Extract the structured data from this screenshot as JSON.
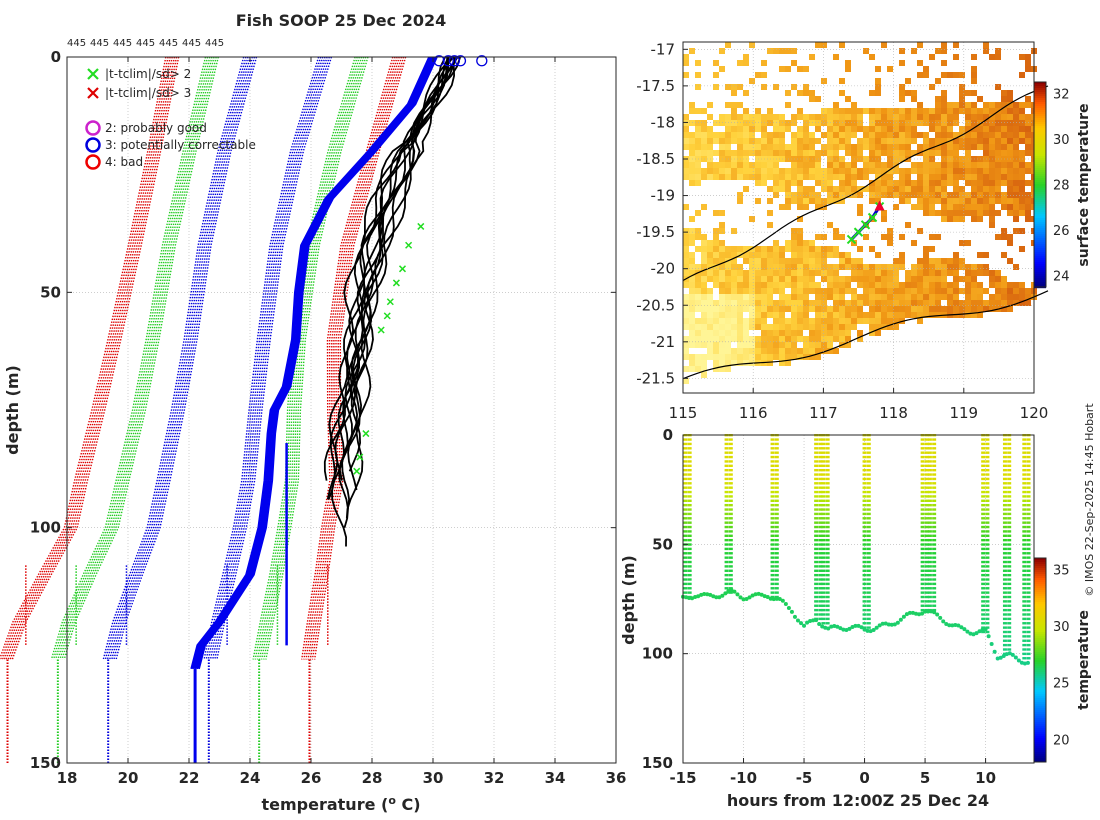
{
  "chart_data": [
    {
      "type": "line",
      "title": "Fish SOOP 25 Dec 2024",
      "xlabel": "temperature (",
      "xlabel_sup": "o",
      "xlabel_tail": " C)",
      "ylabel": "depth (m)",
      "xlim": [
        18,
        36
      ],
      "ylim": [
        0,
        150
      ],
      "y_reversed": true,
      "grid": true,
      "xticks": [
        18,
        20,
        22,
        24,
        26,
        28,
        30,
        32,
        34,
        36
      ],
      "yticks": [
        0,
        50,
        100,
        150
      ],
      "top_counts": [
        "445",
        "445",
        "445",
        "445",
        "445",
        "445",
        "445"
      ],
      "legend": [
        {
          "marker": "x",
          "color": "#22dd22",
          "label": "|t-tclim|/sd> 2"
        },
        {
          "marker": "x",
          "color": "#dd0000",
          "label": "|t-tclim|/sd> 3"
        },
        {
          "marker": "o",
          "color": "#cc22cc",
          "label": "2: probably good"
        },
        {
          "marker": "o",
          "color": "#0000dd",
          "label": "3: potentially correctable"
        },
        {
          "marker": "o",
          "color": "#ee0000",
          "label": "4: bad"
        }
      ],
      "climatology": {
        "depths": [
          0,
          20,
          40,
          60,
          75,
          90,
          100,
          110,
          120,
          128
        ],
        "mean": [
          25.2,
          24.4,
          23.7,
          23.2,
          22.9,
          22.6,
          22.3,
          21.8,
          21.3,
          21.0
        ],
        "offsets_sd": [
          -3,
          -2,
          -1,
          1,
          2,
          3
        ],
        "sd": [
          1.25,
          1.2,
          1.15,
          1.2,
          1.3,
          1.4,
          1.4,
          1.5,
          1.6,
          1.65
        ],
        "series_colors": [
          "#dd0000",
          "#22cc22",
          "#0000dd",
          "#0000dd",
          "#22cc22",
          "#dd0000"
        ]
      },
      "mean_series": {
        "name": "climatological mean",
        "color": "#0000ee",
        "depths": [
          0,
          10,
          20,
          30,
          40,
          50,
          60,
          70,
          75,
          80,
          90,
          100,
          110,
          120,
          125,
          130
        ],
        "values": [
          30.0,
          29.3,
          28.0,
          26.6,
          25.8,
          25.6,
          25.5,
          25.2,
          24.8,
          24.7,
          24.6,
          24.4,
          24.0,
          23.0,
          22.4,
          22.2
        ]
      },
      "profiles": {
        "color": "#000000",
        "base_depths": [
          0,
          5,
          10,
          20,
          30,
          40,
          50,
          60,
          70,
          80,
          90
        ],
        "base_values": [
          30.6,
          30.3,
          29.9,
          29.1,
          28.5,
          28.0,
          27.7,
          27.5,
          27.3,
          27.1,
          26.9
        ],
        "shifts": [
          -0.35,
          -0.2,
          0.0,
          0.15,
          0.3,
          0.45,
          -0.1,
          0.25,
          0.05,
          -0.25,
          0.35,
          0.1
        ],
        "max_depths": [
          90,
          95,
          105,
          88,
          92,
          98,
          86,
          100,
          90,
          94,
          89,
          96
        ]
      },
      "flag_marks": {
        "green_x": [
          [
            29.2,
            40
          ],
          [
            29.0,
            45
          ],
          [
            28.8,
            48
          ],
          [
            28.6,
            52
          ],
          [
            28.5,
            55
          ],
          [
            28.3,
            58
          ],
          [
            27.8,
            80
          ],
          [
            27.6,
            85
          ],
          [
            27.5,
            88
          ],
          [
            29.6,
            36
          ]
        ],
        "blue_o_top": [
          30.2,
          30.5,
          30.7,
          30.9,
          31.6
        ]
      }
    },
    {
      "type": "heatmap",
      "colorbar_label": "surface temperature",
      "xlim": [
        115,
        120
      ],
      "ylim": [
        -21.7,
        -16.9
      ],
      "xticks": [
        "115",
        "116",
        "117",
        "118",
        "119",
        "120"
      ],
      "yticks": [
        "-17",
        "-17.5",
        "-18",
        "-18.5",
        "-19",
        "-19.5",
        "-20",
        "-20.5",
        "-21",
        "-21.5"
      ],
      "ytick_values": [
        -17,
        -17.5,
        -18,
        -18.5,
        -19,
        -19.5,
        -20,
        -20.5,
        -21,
        -21.5
      ],
      "colorbar_ticks": [
        "24",
        "26",
        "28",
        "30",
        "32"
      ],
      "colorbar_range": [
        23.5,
        32.5
      ],
      "track": {
        "lons": [
          117.4,
          117.5,
          117.6,
          117.7,
          117.8
        ],
        "lats": [
          -19.6,
          -19.5,
          -19.4,
          -19.3,
          -19.15
        ]
      }
    },
    {
      "type": "scatter",
      "xlabel": "hours from 12:00Z 25 Dec 24",
      "ylabel": "depth (m)",
      "xlim": [
        -15,
        14
      ],
      "ylim": [
        0,
        150
      ],
      "y_reversed": true,
      "xticks": [
        "-15",
        "-10",
        "-5",
        "0",
        "5",
        "10"
      ],
      "xtick_values": [
        -15,
        -10,
        -5,
        0,
        5,
        10
      ],
      "yticks": [
        "0",
        "50",
        "100",
        "150"
      ],
      "ytick_values": [
        0,
        50,
        100,
        150
      ],
      "colorbar_label": "temperature",
      "colorbar_ticks": [
        "20",
        "25",
        "30",
        "35"
      ],
      "colorbar_range": [
        18,
        36
      ],
      "casts_hours": [
        -14.8,
        -11.4,
        -7.6,
        -4.0,
        -3.4,
        0.0,
        4.8,
        5.4,
        9.8,
        11.6,
        13.2
      ],
      "bottom_depth": {
        "hours": [
          -15,
          -14,
          -13,
          -12,
          -11,
          -10,
          -9,
          -8,
          -7,
          -6,
          -5,
          -4,
          -3,
          -2,
          -1,
          0,
          1,
          2,
          3,
          4,
          5,
          6,
          7,
          8,
          9,
          10,
          11,
          12,
          13,
          13.6
        ],
        "depths": [
          75,
          73,
          74,
          73,
          72,
          74,
          74,
          73,
          76,
          80,
          88,
          84,
          89,
          88,
          88,
          89,
          88,
          87,
          84,
          82,
          80,
          83,
          86,
          89,
          90,
          90,
          101,
          101,
          103,
          104
        ]
      }
    }
  ],
  "colors": {
    "axis": "#262626",
    "grid": "#b0b0b0",
    "coast": "#000000"
  },
  "copyright": "© IMOS 22-Sep-2025 14:45 Hobart"
}
